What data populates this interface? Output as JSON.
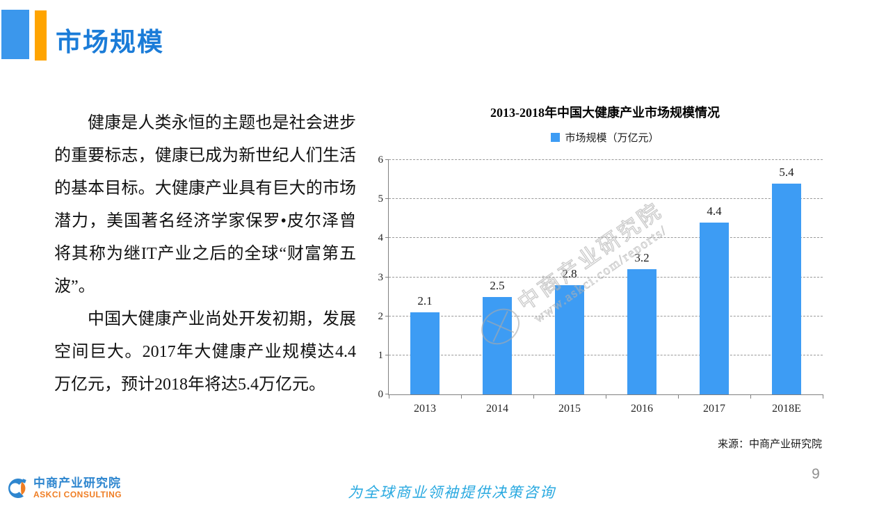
{
  "header": {
    "title": "市场规模"
  },
  "body": {
    "paragraph1": "健康是人类永恒的主题也是社会进步的重要标志，健康已成为新世纪人们生活的基本目标。大健康产业具有巨大的市场潜力，美国著名经济学家保罗•皮尔泽曾将其称为继IT产业之后的全球“财富第五波”。",
    "paragraph2": "中国大健康产业尚处开发初期，发展空间巨大。2017年大健康产业规模达4.4万亿元，预计2018年将达5.4万亿元。"
  },
  "chart_data": {
    "type": "bar",
    "title": "2013-2018年中国大健康产业市场规模情况",
    "legend": "市场规模（万亿元）",
    "legend_position": "top",
    "categories": [
      "2013",
      "2014",
      "2015",
      "2016",
      "2017",
      "2018E"
    ],
    "values": [
      2.1,
      2.5,
      2.8,
      3.2,
      4.4,
      5.4
    ],
    "ylim": [
      0,
      6
    ],
    "ytick_step": 1,
    "grid": "horizontal-dashed",
    "bar_color": "#3D9CF4"
  },
  "source": "来源：中商产业研究院",
  "watermark": {
    "line1": "中商产业研究院",
    "line2": "www.askci.com/reports/"
  },
  "footer": {
    "logo_cn": "中商产业研究院",
    "logo_en": "ASKCI CONSULTING",
    "slogan": "为全球商业领袖提供决策咨询",
    "page_number": "9"
  },
  "colors": {
    "accent_blue": "#3B97EC",
    "accent_orange": "#FFA400",
    "title_blue": "#1B7CD8",
    "bar_blue": "#3D9CF4",
    "slogan_blue": "#29A9E0"
  }
}
